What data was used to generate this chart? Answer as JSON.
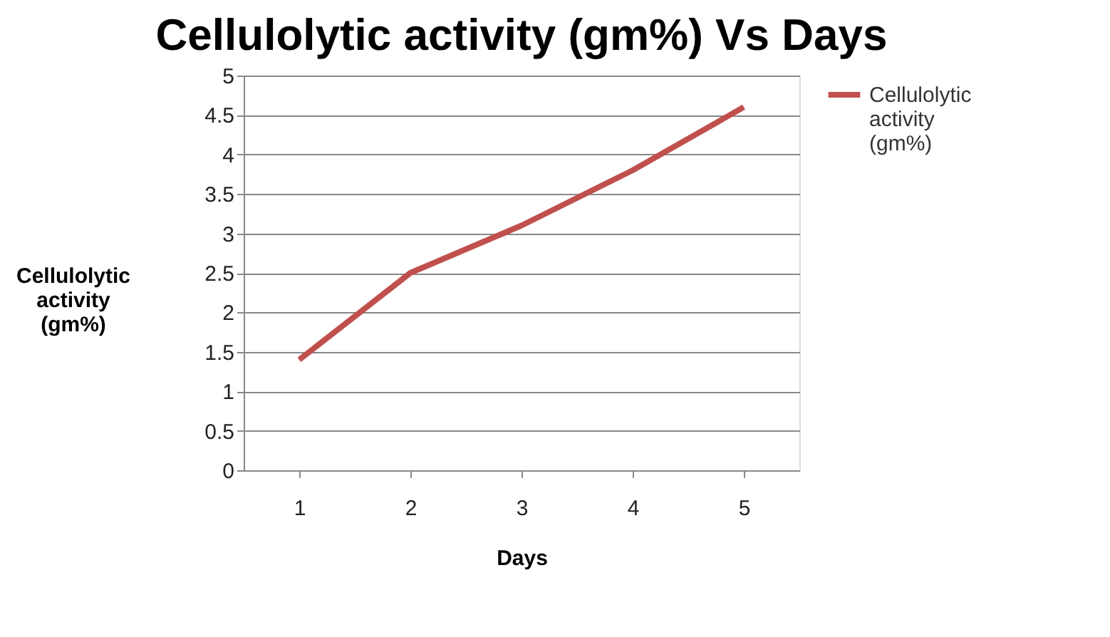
{
  "chart_data": {
    "type": "line",
    "title": "Cellulolytic activity (gm%) Vs Days",
    "xlabel": "Days",
    "ylabel": "Cellulolytic activity (gm%)",
    "categories": [
      "1",
      "2",
      "3",
      "4",
      "5"
    ],
    "series": [
      {
        "name": "Cellulolytic activity (gm%)",
        "color": "#c0504d",
        "values": [
          1.4,
          2.5,
          3.1,
          3.8,
          4.6
        ]
      }
    ],
    "ylim": [
      0,
      5
    ],
    "yticks": [
      0,
      0.5,
      1,
      1.5,
      2,
      2.5,
      3,
      3.5,
      4,
      4.5,
      5
    ],
    "grid": "y",
    "legend": "right",
    "marker": "none",
    "line_style": "solid"
  }
}
